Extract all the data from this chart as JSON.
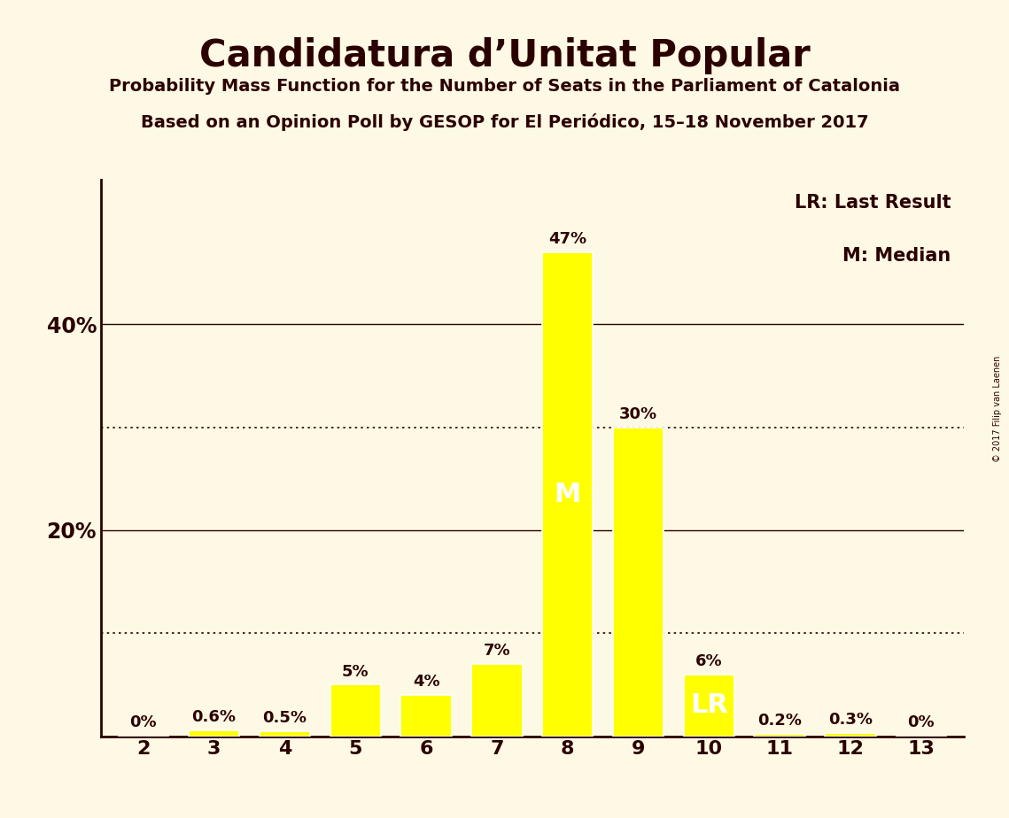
{
  "title": "Candidatura d’Unitat Popular",
  "subtitle1": "Probability Mass Function for the Number of Seats in the Parliament of Catalonia",
  "subtitle2": "Based on an Opinion Poll by GESOP for El Periódico, 15–18 November 2017",
  "copyright": "© 2017 Filip van Laenen",
  "categories": [
    2,
    3,
    4,
    5,
    6,
    7,
    8,
    9,
    10,
    11,
    12,
    13
  ],
  "values": [
    0.0,
    0.6,
    0.5,
    5.0,
    4.0,
    7.0,
    47.0,
    30.0,
    6.0,
    0.2,
    0.3,
    0.0
  ],
  "bar_color": "#ffff00",
  "bar_edge_color": "#ffffff",
  "background_color": "#fef9e4",
  "text_color": "#2b0000",
  "label_texts": {
    "8": "M",
    "10": "LR"
  },
  "value_labels": [
    "0%",
    "0.6%",
    "0.5%",
    "5%",
    "4%",
    "7%",
    "47%",
    "30%",
    "6%",
    "0.2%",
    "0.3%",
    "0%"
  ],
  "dotted_gridlines": [
    10,
    30
  ],
  "solid_gridlines": [
    20,
    40
  ],
  "legend_lr": "LR: Last Result",
  "legend_m": "M: Median",
  "ylim": [
    0,
    54
  ]
}
